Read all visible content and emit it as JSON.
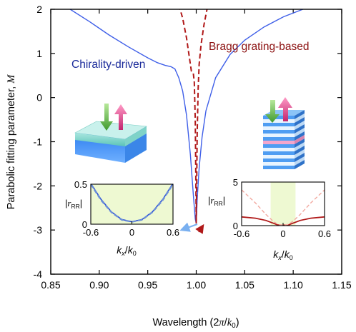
{
  "chart_data": {
    "type": "line",
    "xlabel_parts": [
      "Wavelength (2",
      "π",
      "/",
      "k",
      "0",
      ")"
    ],
    "ylabel_parts": [
      "Parabolic fitting parameter, ",
      "M"
    ],
    "xlim": [
      0.85,
      1.15
    ],
    "ylim": [
      -4,
      2
    ],
    "x_ticks": [
      "0.85",
      "0.90",
      "0.95",
      "1.00",
      "1.05",
      "1.10",
      "1.15"
    ],
    "y_ticks": [
      "2",
      "1",
      "0",
      "-1",
      "-2",
      "-3",
      "-4"
    ],
    "grid": false,
    "colors": {
      "blue": "#3f5fe8",
      "red": "#b01818",
      "navy": "#1a2a9a",
      "darkred": "#8b1010",
      "green_fill": "#eef9d2"
    },
    "series": [
      {
        "name": "Chirality-driven",
        "style": "solid",
        "x": [
          0.85,
          0.87,
          0.89,
          0.91,
          0.93,
          0.95,
          0.96,
          0.968,
          0.974,
          0.978,
          0.982,
          0.986,
          0.99,
          0.994,
          0.997,
          0.999,
          1.0
        ],
        "y": [
          2.3,
          2.0,
          1.72,
          1.42,
          1.15,
          0.9,
          0.79,
          0.73,
          0.7,
          0.65,
          0.45,
          0.15,
          -0.4,
          -1.3,
          -2.2,
          -2.75,
          -2.85
        ]
      },
      {
        "name": "Chirality-driven",
        "style": "solid",
        "x": [
          1.0,
          1.001,
          1.003,
          1.006,
          1.01,
          1.02,
          1.035,
          1.05,
          1.07,
          1.09,
          1.11,
          1.13,
          1.15
        ],
        "y": [
          -2.85,
          -2.3,
          -1.6,
          -0.9,
          -0.3,
          0.45,
          0.98,
          1.3,
          1.6,
          1.83,
          2.0,
          2.15,
          2.27
        ]
      },
      {
        "name": "Bragg grating-based",
        "style": "dashed",
        "x": [
          0.982,
          0.986,
          0.99,
          0.993,
          0.995,
          0.997,
          0.998,
          0.999,
          0.9995,
          1.0
        ],
        "y": [
          2.1,
          1.8,
          1.35,
          0.9,
          0.6,
          0.55,
          0.35,
          -0.5,
          -1.6,
          -2.85
        ]
      },
      {
        "name": "Bragg grating-based",
        "style": "dashed",
        "x": [
          1.0,
          1.0005,
          1.001,
          1.002,
          1.003,
          1.005,
          1.008,
          1.012
        ],
        "y": [
          -2.85,
          -1.9,
          -0.8,
          0.2,
          0.75,
          1.2,
          1.65,
          2.1
        ]
      }
    ],
    "annotations": [
      {
        "text": "Chirality-driven",
        "color": "#1a2a9a"
      },
      {
        "text": "Bragg grating-based",
        "color": "#8b1010"
      }
    ],
    "insets": [
      {
        "type": "line",
        "xlim": [
          -0.6,
          0.6
        ],
        "ylim": [
          0,
          0.5
        ],
        "x_ticks": [
          "-0.6",
          "0",
          "0.6"
        ],
        "y_ticks": [
          "0",
          "0.5"
        ],
        "ylabel_parts": [
          "|",
          "r",
          "RR",
          "|"
        ],
        "xlabel_parts": [
          "k",
          "x",
          "/",
          "k",
          "0"
        ],
        "shaded_x": [
          -0.6,
          0.6
        ],
        "series": [
          {
            "style": "solid",
            "x": [
              -0.6,
              -0.45,
              -0.3,
              -0.15,
              0,
              0.15,
              0.3,
              0.45,
              0.6
            ],
            "y": [
              0.51,
              0.31,
              0.155,
              0.06,
              0.03,
              0.06,
              0.155,
              0.31,
              0.51
            ]
          },
          {
            "style": "dashed",
            "x": [
              -0.6,
              -0.45,
              -0.3,
              -0.15,
              0,
              0.15,
              0.3,
              0.45,
              0.6
            ],
            "y": [
              0.5,
              0.3,
              0.15,
              0.055,
              0.03,
              0.055,
              0.15,
              0.3,
              0.5
            ]
          }
        ]
      },
      {
        "type": "line",
        "xlim": [
          -0.6,
          0.6
        ],
        "ylim": [
          0,
          5
        ],
        "x_ticks": [
          "-0.6",
          "0",
          "0.6"
        ],
        "y_ticks": [
          "0",
          "5"
        ],
        "ylabel_parts": [
          "|",
          "r",
          "RR",
          "|"
        ],
        "xlabel_parts": [
          "k",
          "x",
          "/",
          "k",
          "0"
        ],
        "shaded_x": [
          -0.18,
          0.18
        ],
        "series": [
          {
            "style": "solid",
            "x": [
              -0.6,
              -0.4,
              -0.25,
              -0.15,
              -0.08,
              0,
              0.08,
              0.15,
              0.25,
              0.4,
              0.6
            ],
            "y": [
              1.0,
              0.85,
              0.6,
              0.3,
              0.08,
              0.05,
              0.08,
              0.3,
              0.6,
              0.85,
              1.0
            ]
          },
          {
            "style": "dashed",
            "x": [
              -0.6,
              -0.4,
              -0.25,
              -0.15,
              -0.08,
              0,
              0.08,
              0.15,
              0.25,
              0.4,
              0.6
            ],
            "y": [
              4.1,
              2.6,
              1.3,
              0.55,
              0.15,
              0.05,
              0.15,
              0.55,
              1.3,
              2.6,
              4.1
            ]
          }
        ]
      }
    ]
  }
}
